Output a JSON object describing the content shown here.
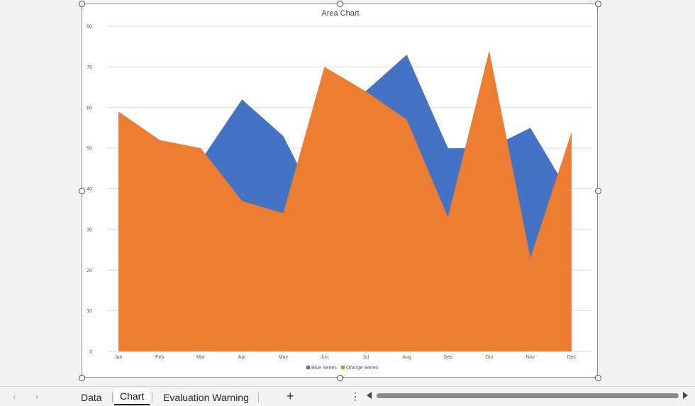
{
  "chart_data": {
    "type": "area",
    "title": "Area Chart",
    "categories": [
      "Jan",
      "Feb",
      "Mar",
      "Apr",
      "May",
      "Jun",
      "Jul",
      "Aug",
      "Sep",
      "Oct",
      "Nov",
      "Dec"
    ],
    "series": [
      {
        "name": "Blue Series",
        "color": "#4472C4",
        "values": [
          59,
          52,
          47,
          62,
          53,
          33,
          64,
          73,
          50,
          50,
          55,
          38
        ]
      },
      {
        "name": "Orange Series",
        "color": "#ED7D31",
        "values": [
          59,
          52,
          50,
          37,
          34,
          70,
          64,
          57,
          33,
          74,
          23,
          54
        ]
      }
    ],
    "ylim": [
      0,
      80
    ],
    "yticks": [
      0,
      10,
      20,
      30,
      40,
      50,
      60,
      70,
      80
    ],
    "grid": true,
    "legend": "bottom"
  },
  "sheet_tabs": {
    "tabs": [
      {
        "label": "Data",
        "active": false
      },
      {
        "label": "Chart",
        "active": true
      },
      {
        "label": "Evaluation Warning",
        "active": false
      }
    ],
    "prev_icon": "chevron-left-icon",
    "next_icon": "chevron-right-icon",
    "add_label": "+",
    "more_label": "⋮"
  }
}
